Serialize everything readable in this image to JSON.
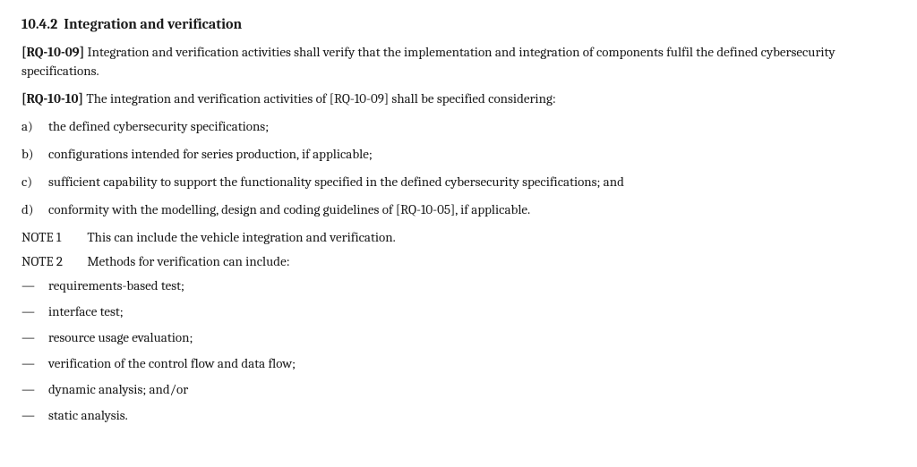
{
  "heading": {
    "number": "10.4.2",
    "title": "Integration and verification"
  },
  "req1": {
    "id": "[RQ-10-09]",
    "text": " Integration and verification activities shall verify that the implementation and integration of components fulfil the defined cybersecurity specifications."
  },
  "req2": {
    "id": "[RQ-10-10]",
    "text": "  The integration and verification activities of [RQ-10-09] shall be specified considering:"
  },
  "list_a": {
    "marker": "a)",
    "text": "the defined cybersecurity specifications;"
  },
  "list_b": {
    "marker": "b)",
    "text": "configurations intended for series production, if applicable;"
  },
  "list_c": {
    "marker": "c)",
    "text": "sufficient capability to support the functionality specified in the defined cybersecurity specifications; and"
  },
  "list_d": {
    "marker": "d)",
    "text": "conformity with the modelling, design and coding guidelines of [RQ-10-05], if applicable."
  },
  "note1": {
    "label": "NOTE 1",
    "text": "This can include the vehicle integration and verification."
  },
  "note2": {
    "label": "NOTE 2",
    "text": "Methods for verification can include:"
  },
  "dash_items": {
    "d0": "requirements-based test;",
    "d1": "interface test;",
    "d2": "resource usage evaluation;",
    "d3": "verification of the control flow and data flow;",
    "d4": "dynamic analysis; and/or",
    "d5": "static analysis."
  },
  "dash_marker": "—"
}
